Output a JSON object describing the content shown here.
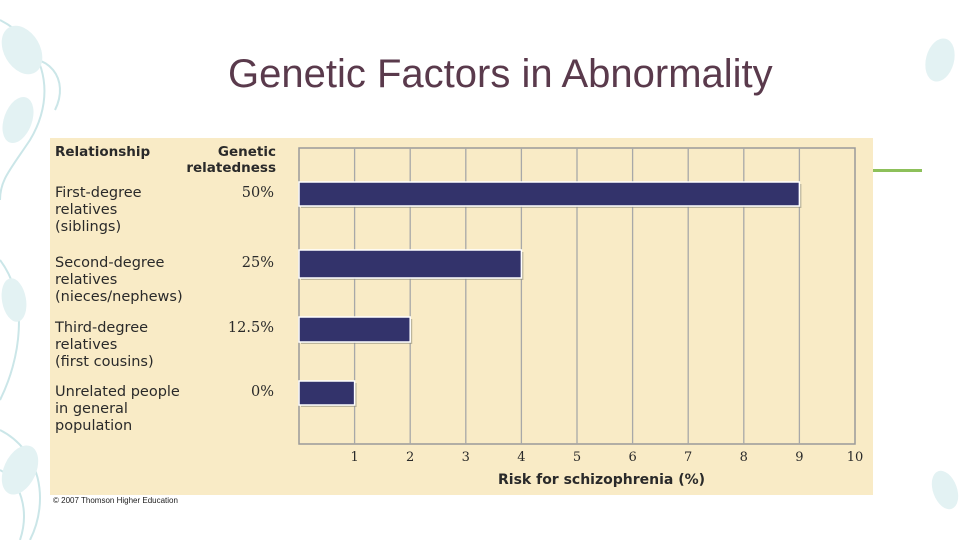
{
  "slide": {
    "title": "Genetic Factors in Abnormality"
  },
  "chart_data": {
    "type": "bar",
    "orientation": "horizontal",
    "column_headers": {
      "relationship": "Relationship",
      "relatedness_line1": "Genetic",
      "relatedness_line2": "relatedness"
    },
    "categories": [
      {
        "label_lines": [
          "First-degree",
          "relatives",
          "(siblings)"
        ],
        "relatedness": "50%"
      },
      {
        "label_lines": [
          "Second-degree",
          "relatives",
          "(nieces/nephews)"
        ],
        "relatedness": "25%"
      },
      {
        "label_lines": [
          "Third-degree",
          "relatives",
          "(first cousins)"
        ],
        "relatedness": "12.5%"
      },
      {
        "label_lines": [
          "Unrelated people",
          "in general",
          "population"
        ],
        "relatedness": "0%"
      }
    ],
    "values": [
      9,
      4,
      2,
      1
    ],
    "xlabel": "Risk for schizophrenia (%)",
    "xticks": [
      "1",
      "2",
      "3",
      "4",
      "5",
      "6",
      "7",
      "8",
      "9",
      "10"
    ],
    "xlim": [
      0,
      10
    ],
    "grid": true,
    "bar_color": "#33336b",
    "panel_color": "#f9ebc6"
  },
  "footer": {
    "copyright": "© 2007 Thomson Higher Education"
  },
  "colors": {
    "title": "#5a3a4c",
    "accent_line": "#8dc05a",
    "decoration": "#b9dde0"
  }
}
